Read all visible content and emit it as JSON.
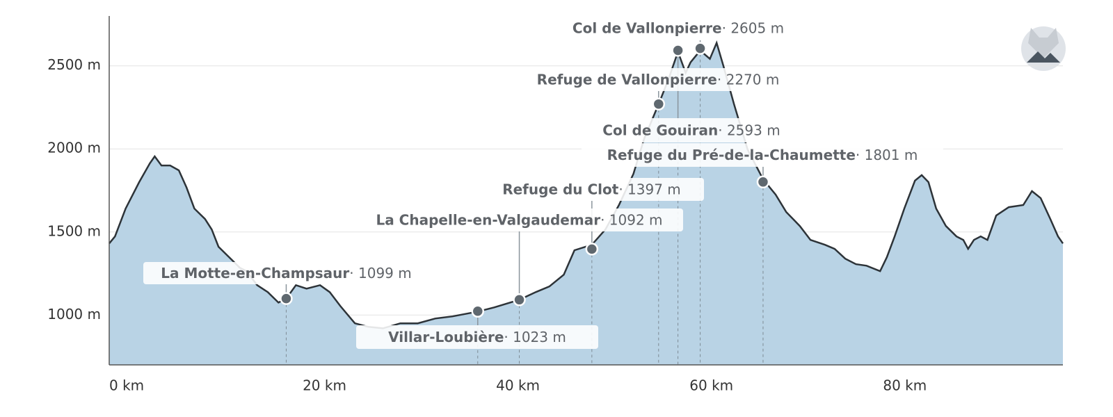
{
  "chart_data": {
    "type": "area",
    "x": [
      0,
      0.6,
      1.7,
      3.1,
      4.2,
      4.7,
      5.4,
      6.3,
      7.2,
      8.0,
      8.8,
      9.9,
      10.6,
      11.3,
      12.4,
      13.5,
      14.2,
      15.3,
      16.4,
      17.5,
      18.3,
      19.3,
      20.4,
      21.8,
      22.8,
      23.9,
      25.4,
      26.8,
      28.3,
      30.1,
      31.9,
      33.7,
      35.5,
      38.1,
      39.8,
      42.4,
      44.1,
      45.5,
      47.0,
      48.1,
      49.9,
      51.3,
      52.7,
      54.2,
      55.3,
      56.8,
      57.8,
      58.8,
      59.6,
      60.1,
      61.1,
      62.1,
      62.8,
      63.5,
      64.6,
      66.0,
      67.6,
      68.9,
      70.0,
      71.4,
      72.5,
      74.0,
      75.0,
      76.1,
      77.2,
      78.3,
      79.7,
      80.4,
      81.2,
      82.2,
      83.3,
      84.0,
      84.7,
      85.5,
      86.5,
      87.6,
      88.3,
      88.8,
      89.4,
      90.1,
      90.8,
      91.7,
      93.0,
      94.5,
      95.4,
      96.3,
      97.3,
      98.1,
      98.6
    ],
    "values": [
      1431,
      1473,
      1641,
      1800,
      1913,
      1955,
      1900,
      1900,
      1871,
      1767,
      1641,
      1578,
      1515,
      1411,
      1348,
      1285,
      1264,
      1180,
      1138,
      1075,
      1099,
      1180,
      1159,
      1180,
      1138,
      1054,
      950,
      929,
      920,
      950,
      950,
      979,
      992,
      1021,
      1046,
      1092,
      1138,
      1172,
      1243,
      1390,
      1423,
      1515,
      1662,
      1850,
      2060,
      2269,
      2416,
      2584,
      2458,
      2521,
      2592,
      2542,
      2638,
      2500,
      2269,
      1997,
      1817,
      1725,
      1620,
      1536,
      1452,
      1423,
      1398,
      1339,
      1306,
      1297,
      1264,
      1348,
      1473,
      1641,
      1809,
      1842,
      1800,
      1641,
      1536,
      1473,
      1452,
      1398,
      1452,
      1473,
      1452,
      1599,
      1649,
      1662,
      1746,
      1704,
      1578,
      1473,
      1431
    ],
    "color": "#b9d3e5",
    "line_color": "#2d3338",
    "xlim": [
      0,
      98.6
    ],
    "ylim": [
      700,
      2800
    ],
    "xticks": [
      {
        "value": 0,
        "label": "0 km"
      },
      {
        "value": 20,
        "label": "20 km"
      },
      {
        "value": 40,
        "label": "40 km"
      },
      {
        "value": 60,
        "label": "60 km"
      },
      {
        "value": 80,
        "label": "80 km"
      }
    ],
    "yticks": [
      {
        "value": 1000,
        "label": "1000 m"
      },
      {
        "value": 1500,
        "label": "1500 m"
      },
      {
        "value": 2000,
        "label": "2000 m"
      },
      {
        "value": 2500,
        "label": "2500 m"
      }
    ],
    "grid": true,
    "waypoints": [
      {
        "name": "La Motte-en-Champsaur",
        "km": 18.3,
        "elevation": 1099,
        "elevation_label": "· 1099 m"
      },
      {
        "name": "Villar-Loubière",
        "km": 38.1,
        "elevation": 1023,
        "elevation_label": "· 1023 m"
      },
      {
        "name": "La Chapelle-en-Valgaudemar",
        "km": 42.4,
        "elevation": 1092,
        "elevation_label": "· 1092 m"
      },
      {
        "name": "Refuge du Clot",
        "km": 49.9,
        "elevation": 1397,
        "elevation_label": "· 1397 m"
      },
      {
        "name": "Refuge de Vallonpierre",
        "km": 56.8,
        "elevation": 2270,
        "elevation_label": "· 2270 m"
      },
      {
        "name": "Col de Vallonpierre",
        "km": 61.1,
        "elevation": 2605,
        "elevation_label": "· 2605 m"
      },
      {
        "name": "Col de Gouiran",
        "km": 58.8,
        "elevation": 2593,
        "elevation_label": "· 2593 m"
      },
      {
        "name": "Refuge du Pré-de-la-Chaumette",
        "km": 67.6,
        "elevation": 1801,
        "elevation_label": "· 1801 m"
      }
    ]
  }
}
